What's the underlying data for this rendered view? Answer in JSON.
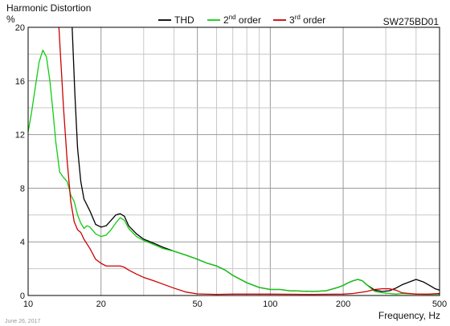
{
  "chart_data": {
    "type": "line",
    "title": "Harmonic Distortion",
    "model": "SW275BD01",
    "ylabel": "%",
    "xlabel": "Frequency, Hz",
    "date": "June 26, 2017",
    "x_scale": "log",
    "xlim": [
      10,
      500
    ],
    "ylim": [
      0,
      20
    ],
    "grid": true,
    "legend_position": "top",
    "x_ticks": [
      {
        "value": 10,
        "label": "10"
      },
      {
        "value": 20,
        "label": "20"
      },
      {
        "value": 50,
        "label": "50"
      },
      {
        "value": 100,
        "label": "100"
      },
      {
        "value": 200,
        "label": "200"
      },
      {
        "value": 500,
        "label": "500"
      }
    ],
    "y_ticks": [
      {
        "value": 0,
        "label": "0"
      },
      {
        "value": 4,
        "label": "4"
      },
      {
        "value": 8,
        "label": "8"
      },
      {
        "value": 12,
        "label": "12"
      },
      {
        "value": 16,
        "label": "16"
      },
      {
        "value": 20,
        "label": "20"
      }
    ],
    "series": [
      {
        "name": "THD",
        "legend_main": "THD",
        "legend_sup": "",
        "legend_rest": "",
        "color": "#000000",
        "points": [
          [
            15.2,
            20
          ],
          [
            15.6,
            15
          ],
          [
            16,
            11
          ],
          [
            16.5,
            8.5
          ],
          [
            17,
            7.2
          ],
          [
            18,
            6.3
          ],
          [
            19,
            5.3
          ],
          [
            20,
            5.1
          ],
          [
            21,
            5.2
          ],
          [
            22,
            5.6
          ],
          [
            23,
            6.0
          ],
          [
            24,
            6.1
          ],
          [
            25,
            5.9
          ],
          [
            26,
            5.2
          ],
          [
            28,
            4.6
          ],
          [
            30,
            4.2
          ],
          [
            33,
            3.9
          ],
          [
            36,
            3.6
          ],
          [
            40,
            3.3
          ],
          [
            45,
            3.0
          ],
          [
            50,
            2.7
          ],
          [
            55,
            2.4
          ],
          [
            60,
            2.2
          ],
          [
            65,
            1.9
          ],
          [
            70,
            1.5
          ],
          [
            80,
            0.95
          ],
          [
            90,
            0.6
          ],
          [
            100,
            0.45
          ],
          [
            110,
            0.45
          ],
          [
            120,
            0.35
          ],
          [
            150,
            0.3
          ],
          [
            170,
            0.35
          ],
          [
            190,
            0.6
          ],
          [
            200,
            0.75
          ],
          [
            210,
            0.95
          ],
          [
            220,
            1.1
          ],
          [
            230,
            1.2
          ],
          [
            240,
            1.1
          ],
          [
            250,
            0.8
          ],
          [
            270,
            0.4
          ],
          [
            290,
            0.3
          ],
          [
            310,
            0.35
          ],
          [
            330,
            0.55
          ],
          [
            350,
            0.8
          ],
          [
            380,
            1.05
          ],
          [
            400,
            1.2
          ],
          [
            430,
            1.0
          ],
          [
            460,
            0.7
          ],
          [
            480,
            0.5
          ],
          [
            500,
            0.4
          ]
        ]
      },
      {
        "name": "2nd order",
        "legend_main": "2",
        "legend_sup": "nd",
        "legend_rest": " order",
        "color": "#11cc11",
        "points": [
          [
            10,
            12.2
          ],
          [
            10.3,
            13.5
          ],
          [
            10.7,
            15.5
          ],
          [
            11.1,
            17.4
          ],
          [
            11.5,
            18.3
          ],
          [
            11.9,
            17.8
          ],
          [
            12.3,
            16
          ],
          [
            12.7,
            13.5
          ],
          [
            13,
            11.5
          ],
          [
            13.5,
            9.2
          ],
          [
            14,
            8.8
          ],
          [
            14.5,
            8.5
          ],
          [
            15,
            7.5
          ],
          [
            15.5,
            7.0
          ],
          [
            16,
            6.0
          ],
          [
            16.5,
            5.4
          ],
          [
            17,
            5.0
          ],
          [
            17.5,
            5.2
          ],
          [
            18,
            5.1
          ],
          [
            19,
            4.6
          ],
          [
            20,
            4.4
          ],
          [
            21,
            4.5
          ],
          [
            22,
            4.9
          ],
          [
            23,
            5.4
          ],
          [
            24,
            5.8
          ],
          [
            25,
            5.6
          ],
          [
            26,
            5.0
          ],
          [
            28,
            4.4
          ],
          [
            30,
            4.1
          ],
          [
            33,
            3.8
          ],
          [
            36,
            3.5
          ],
          [
            40,
            3.3
          ],
          [
            45,
            3.0
          ],
          [
            50,
            2.7
          ],
          [
            55,
            2.4
          ],
          [
            60,
            2.2
          ],
          [
            65,
            1.9
          ],
          [
            70,
            1.5
          ],
          [
            80,
            0.95
          ],
          [
            90,
            0.6
          ],
          [
            100,
            0.45
          ],
          [
            110,
            0.45
          ],
          [
            120,
            0.35
          ],
          [
            150,
            0.3
          ],
          [
            170,
            0.35
          ],
          [
            190,
            0.6
          ],
          [
            200,
            0.75
          ],
          [
            210,
            0.95
          ],
          [
            220,
            1.1
          ],
          [
            230,
            1.2
          ],
          [
            240,
            1.1
          ],
          [
            250,
            0.8
          ],
          [
            270,
            0.3
          ],
          [
            290,
            0.2
          ],
          [
            310,
            0.15
          ],
          [
            330,
            0.1
          ],
          [
            350,
            0.15
          ],
          [
            400,
            0.1
          ],
          [
            450,
            0.08
          ],
          [
            500,
            0.1
          ]
        ]
      },
      {
        "name": "3rd order",
        "legend_main": "3",
        "legend_sup": "rd",
        "legend_rest": " order",
        "color": "#cc0000",
        "points": [
          [
            13.4,
            20
          ],
          [
            14,
            14
          ],
          [
            14.5,
            10
          ],
          [
            15,
            7
          ],
          [
            15.5,
            5.5
          ],
          [
            16,
            4.9
          ],
          [
            16.5,
            4.7
          ],
          [
            17,
            4.2
          ],
          [
            18,
            3.5
          ],
          [
            19,
            2.7
          ],
          [
            20,
            2.4
          ],
          [
            21,
            2.2
          ],
          [
            22,
            2.2
          ],
          [
            24,
            2.2
          ],
          [
            25,
            2.1
          ],
          [
            26,
            1.9
          ],
          [
            28,
            1.6
          ],
          [
            30,
            1.35
          ],
          [
            33,
            1.1
          ],
          [
            36,
            0.85
          ],
          [
            40,
            0.55
          ],
          [
            45,
            0.25
          ],
          [
            50,
            0.12
          ],
          [
            60,
            0.08
          ],
          [
            70,
            0.1
          ],
          [
            80,
            0.1
          ],
          [
            100,
            0.1
          ],
          [
            150,
            0.08
          ],
          [
            200,
            0.1
          ],
          [
            220,
            0.15
          ],
          [
            250,
            0.3
          ],
          [
            270,
            0.45
          ],
          [
            290,
            0.5
          ],
          [
            310,
            0.5
          ],
          [
            330,
            0.4
          ],
          [
            350,
            0.2
          ],
          [
            400,
            0.1
          ],
          [
            450,
            0.1
          ],
          [
            500,
            0.15
          ]
        ]
      }
    ]
  }
}
